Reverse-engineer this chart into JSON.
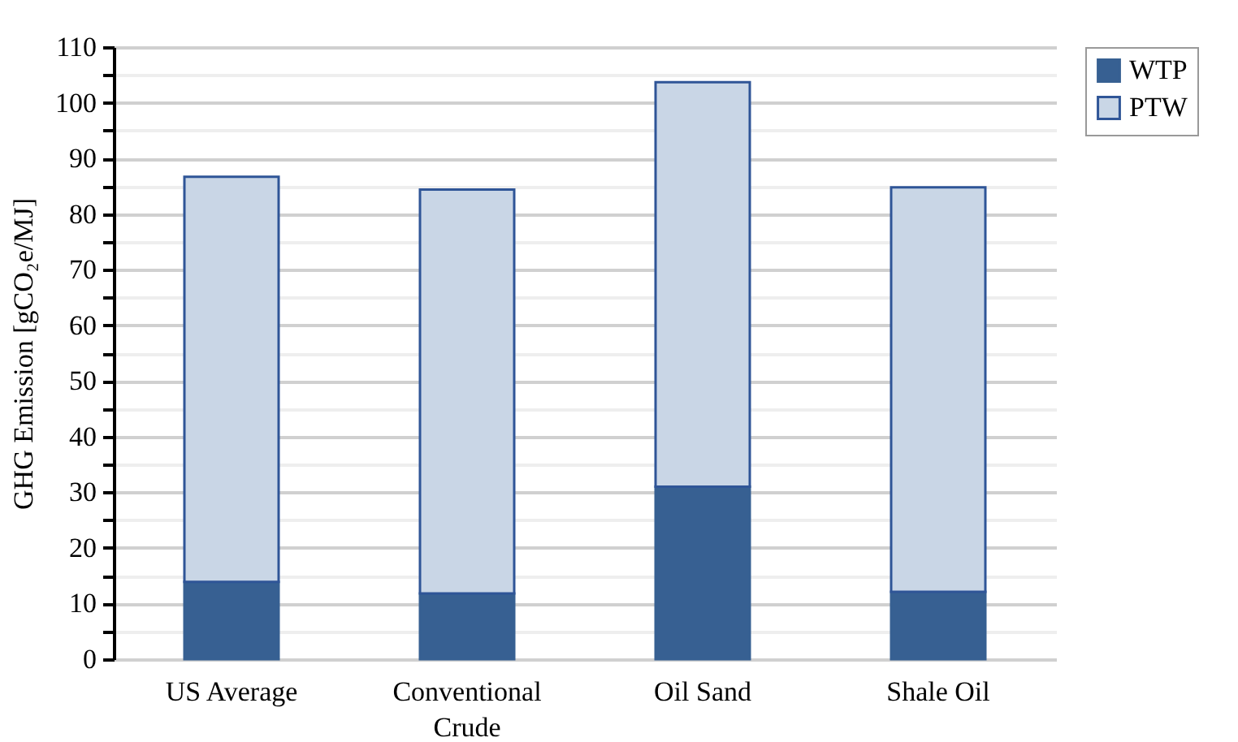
{
  "chart_data": {
    "type": "bar",
    "stacked": true,
    "ylabel": "GHG Emission [gCO₂e/MJ]",
    "categories": [
      "US Average",
      "Conventional Crude",
      "Oil Sand",
      "Shale Oil"
    ],
    "series": [
      {
        "name": "WTP",
        "color": "#376092",
        "values": [
          13.9,
          11.8,
          31.0,
          12.1
        ]
      },
      {
        "name": "PTW",
        "color": "#c9d6e6",
        "values": [
          72.8,
          72.6,
          72.7,
          72.7
        ]
      }
    ],
    "ylim": [
      0,
      110
    ],
    "yticks": [
      0,
      10,
      20,
      30,
      40,
      50,
      60,
      70,
      80,
      90,
      100,
      110
    ],
    "grid": "y",
    "legend": "right"
  }
}
